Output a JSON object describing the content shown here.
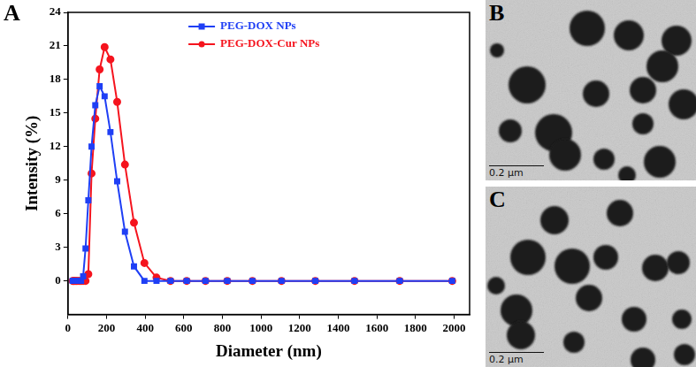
{
  "chart_data": {
    "type": "line",
    "panel_label": "A",
    "x_label": "Diameter (nm)",
    "y_label": "Intensity (%)",
    "x": [
      24.36,
      28.21,
      32.67,
      37.84,
      43.82,
      50.75,
      58.77,
      68.06,
      78.82,
      91.28,
      105.7,
      122.4,
      141.8,
      164.2,
      190.1,
      220.2,
      255.0,
      295.3,
      342.0,
      396.1,
      458.7,
      531.2,
      615.1,
      712.4,
      825.0,
      955.4,
      1106,
      1281,
      1484,
      1718,
      1990
    ],
    "series": [
      {
        "name": "PEG-DOX NPs",
        "color": "#1f3ff5",
        "marker": "square",
        "values": [
          0,
          0,
          0,
          0,
          0,
          0,
          0,
          0,
          0.4,
          2.9,
          7.2,
          12.0,
          15.7,
          17.4,
          16.5,
          13.3,
          8.9,
          4.4,
          1.3,
          0,
          0,
          0,
          0,
          0,
          0,
          0,
          0,
          0,
          0,
          0,
          0
        ]
      },
      {
        "name": "PEG-DOX-Cur NPs",
        "color": "#f5141e",
        "marker": "circle",
        "values": [
          0,
          0,
          0,
          0,
          0,
          0,
          0,
          0,
          0,
          0,
          0.6,
          9.6,
          14.5,
          18.9,
          20.9,
          19.8,
          16.0,
          10.4,
          5.2,
          1.6,
          0.3,
          0,
          0,
          0,
          0,
          0,
          0,
          0,
          0,
          0,
          0
        ]
      }
    ],
    "xlim": [
      0,
      2080
    ],
    "xticks": [
      0,
      200,
      400,
      600,
      800,
      1000,
      1200,
      1400,
      1600,
      1800,
      2000
    ],
    "ylim": [
      -3,
      24
    ],
    "yticks": [
      0,
      3,
      6,
      9,
      12,
      15,
      18,
      21,
      24
    ],
    "grid": false,
    "legend": "top"
  },
  "images": [
    {
      "panel_label": "B",
      "scale_bar": "0.2 μm"
    },
    {
      "panel_label": "C",
      "scale_bar": "0.2 μm"
    }
  ]
}
